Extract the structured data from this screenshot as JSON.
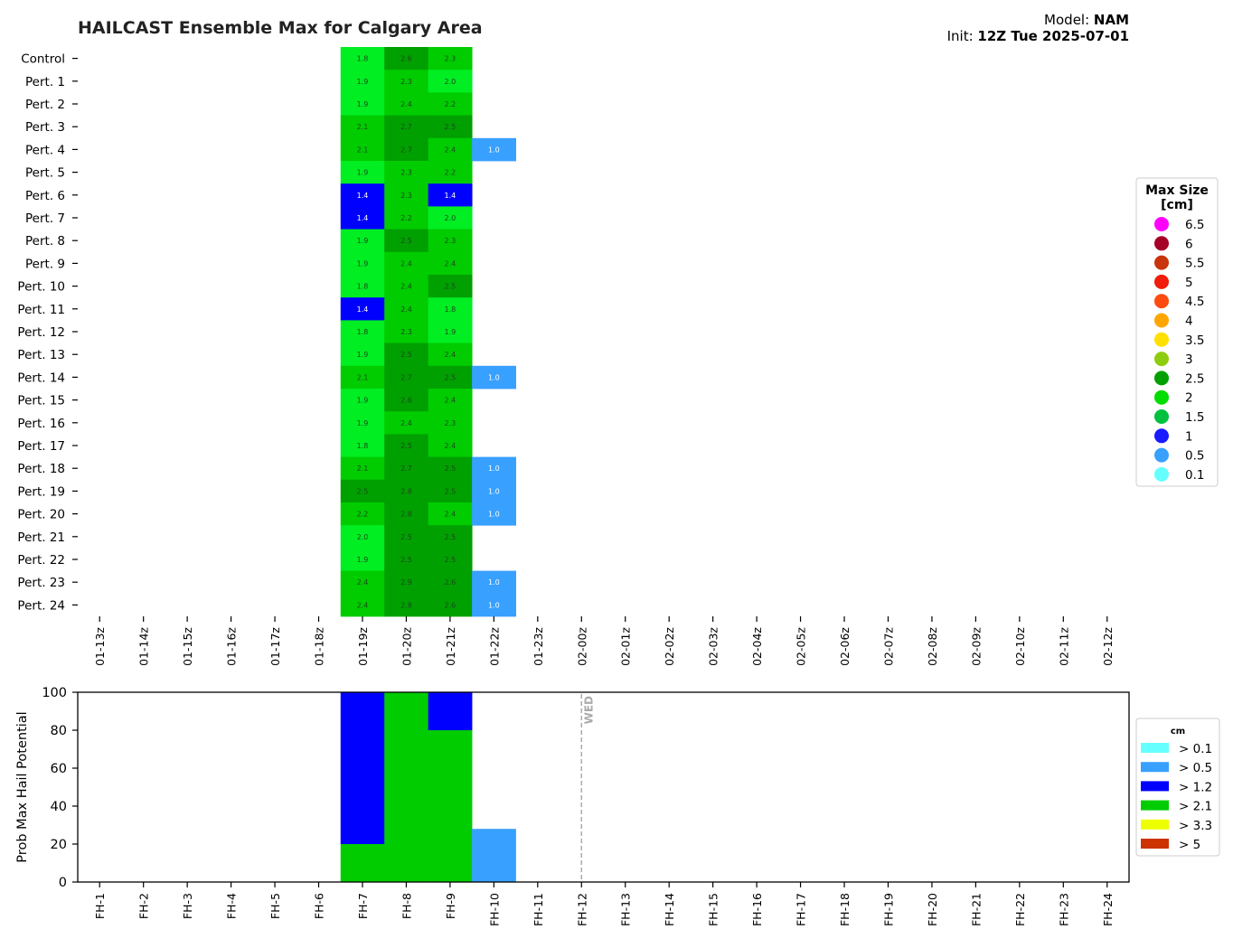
{
  "header": {
    "title": "HAILCAST Ensemble Max for Calgary Area",
    "model_label": "Model: ",
    "model_value": "NAM",
    "init_label": "Init: ",
    "init_value": "12Z Tue 2025-07-01"
  },
  "chart_data": [
    {
      "type": "heatmap",
      "title": "HAILCAST Ensemble Max for Calgary Area",
      "members": [
        "Control",
        "Pert. 1",
        "Pert. 2",
        "Pert. 3",
        "Pert. 4",
        "Pert. 5",
        "Pert. 6",
        "Pert. 7",
        "Pert. 8",
        "Pert. 9",
        "Pert. 10",
        "Pert. 11",
        "Pert. 12",
        "Pert. 13",
        "Pert. 14",
        "Pert. 15",
        "Pert. 16",
        "Pert. 17",
        "Pert. 18",
        "Pert. 19",
        "Pert. 20",
        "Pert. 21",
        "Pert. 22",
        "Pert. 23",
        "Pert. 24"
      ],
      "times": [
        "01-13z",
        "01-14z",
        "01-15z",
        "01-16z",
        "01-17z",
        "01-18z",
        "01-19z",
        "01-20z",
        "01-21z",
        "01-22z",
        "01-23z",
        "02-00z",
        "02-01z",
        "02-02z",
        "02-03z",
        "02-04z",
        "02-05z",
        "02-06z",
        "02-07z",
        "02-08z",
        "02-09z",
        "02-10z",
        "02-11z",
        "02-12z"
      ],
      "first_value_time_index": 6,
      "values": [
        [
          1.8,
          2.6,
          2.3,
          null
        ],
        [
          1.9,
          2.3,
          2.0,
          null
        ],
        [
          1.9,
          2.4,
          2.2,
          null
        ],
        [
          2.1,
          2.7,
          2.5,
          null
        ],
        [
          2.1,
          2.7,
          2.4,
          1.0
        ],
        [
          1.9,
          2.3,
          2.2,
          null
        ],
        [
          1.4,
          2.3,
          1.4,
          null
        ],
        [
          1.4,
          2.2,
          2.0,
          null
        ],
        [
          1.9,
          2.5,
          2.3,
          null
        ],
        [
          1.9,
          2.4,
          2.4,
          null
        ],
        [
          1.8,
          2.4,
          2.5,
          null
        ],
        [
          1.4,
          2.4,
          1.8,
          null
        ],
        [
          1.8,
          2.3,
          1.9,
          null
        ],
        [
          1.9,
          2.5,
          2.4,
          null
        ],
        [
          2.1,
          2.7,
          2.5,
          1.0
        ],
        [
          1.9,
          2.6,
          2.4,
          null
        ],
        [
          1.9,
          2.4,
          2.3,
          null
        ],
        [
          1.8,
          2.5,
          2.4,
          null
        ],
        [
          2.1,
          2.7,
          2.5,
          1.0
        ],
        [
          2.5,
          2.8,
          2.5,
          1.0
        ],
        [
          2.2,
          2.8,
          2.4,
          1.0
        ],
        [
          2.0,
          2.5,
          2.5,
          null
        ],
        [
          1.9,
          2.5,
          2.5,
          null
        ],
        [
          2.4,
          2.9,
          2.6,
          1.0
        ],
        [
          2.4,
          2.8,
          2.6,
          1.0
        ]
      ],
      "legend": {
        "title": "Max Size\n[cm]",
        "position": "right",
        "entries": [
          {
            "label": "6.5",
            "color": "#ff00ff"
          },
          {
            "label": "6",
            "color": "#a50026"
          },
          {
            "label": "5.5",
            "color": "#c8340b"
          },
          {
            "label": "5",
            "color": "#f01c0c"
          },
          {
            "label": "4.5",
            "color": "#ff4a10"
          },
          {
            "label": "4",
            "color": "#ffa500"
          },
          {
            "label": "3.5",
            "color": "#ffe000"
          },
          {
            "label": "3",
            "color": "#8fcc10"
          },
          {
            "label": "2.5",
            "color": "#00a000"
          },
          {
            "label": "2",
            "color": "#00dd00"
          },
          {
            "label": "1.5",
            "color": "#00c040"
          },
          {
            "label": "1",
            "color": "#1a1aff"
          },
          {
            "label": "0.5",
            "color": "#38a0ff"
          },
          {
            "label": "0.1",
            "color": "#66ffff"
          }
        ]
      }
    },
    {
      "type": "bar",
      "stacked": true,
      "ylabel": "Prob Max Hail Potential",
      "ylim": [
        0,
        100
      ],
      "yticks": [
        0,
        20,
        40,
        60,
        80,
        100
      ],
      "categories": [
        "FH-1",
        "FH-2",
        "FH-3",
        "FH-4",
        "FH-5",
        "FH-6",
        "FH-7",
        "FH-8",
        "FH-9",
        "FH-10",
        "FH-11",
        "FH-12",
        "FH-13",
        "FH-14",
        "FH-15",
        "FH-16",
        "FH-17",
        "FH-18",
        "FH-19",
        "FH-20",
        "FH-21",
        "FH-22",
        "FH-23",
        "FH-24"
      ],
      "series": [
        {
          "name": "> 0.1",
          "color": "#66ffff",
          "values": [
            0,
            0,
            0,
            0,
            0,
            0,
            0,
            0,
            0,
            0,
            0,
            0,
            0,
            0,
            0,
            0,
            0,
            0,
            0,
            0,
            0,
            0,
            0,
            0
          ]
        },
        {
          "name": "> 0.5",
          "color": "#38a0ff",
          "values": [
            0,
            0,
            0,
            0,
            0,
            0,
            0,
            0,
            0,
            28,
            0,
            0,
            0,
            0,
            0,
            0,
            0,
            0,
            0,
            0,
            0,
            0,
            0,
            0
          ]
        },
        {
          "name": "> 1.2",
          "color": "#0000ff",
          "values": [
            0,
            0,
            0,
            0,
            0,
            0,
            80,
            0,
            20,
            0,
            0,
            0,
            0,
            0,
            0,
            0,
            0,
            0,
            0,
            0,
            0,
            0,
            0,
            0
          ]
        },
        {
          "name": "> 2.1",
          "color": "#00cc00",
          "values": [
            0,
            0,
            0,
            0,
            0,
            0,
            20,
            100,
            80,
            0,
            0,
            0,
            0,
            0,
            0,
            0,
            0,
            0,
            0,
            0,
            0,
            0,
            0,
            0
          ]
        },
        {
          "name": "> 3.3",
          "color": "#eeff00",
          "values": [
            0,
            0,
            0,
            0,
            0,
            0,
            0,
            0,
            0,
            0,
            0,
            0,
            0,
            0,
            0,
            0,
            0,
            0,
            0,
            0,
            0,
            0,
            0,
            0
          ]
        },
        {
          "name": "> 5",
          "color": "#cc3300",
          "values": [
            0,
            0,
            0,
            0,
            0,
            0,
            0,
            0,
            0,
            0,
            0,
            0,
            0,
            0,
            0,
            0,
            0,
            0,
            0,
            0,
            0,
            0,
            0,
            0
          ]
        }
      ],
      "annotations": [
        {
          "text": "WED",
          "at_category": "FH-12",
          "style": "dashed-vertical-line"
        }
      ],
      "legend": {
        "title": "cm",
        "position": "right"
      }
    }
  ]
}
